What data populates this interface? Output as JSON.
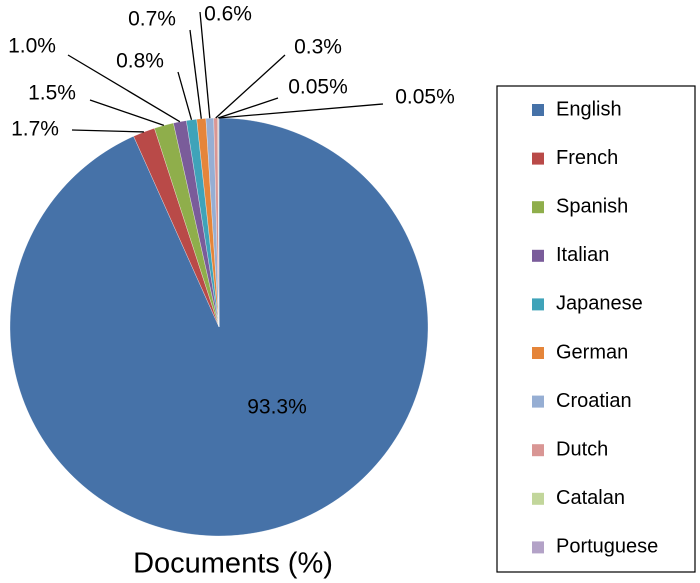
{
  "chart_data": {
    "type": "pie",
    "title": "Documents (%)",
    "categories": [
      "English",
      "French",
      "Spanish",
      "Italian",
      "Japanese",
      "German",
      "Croatian",
      "Dutch",
      "Catalan",
      "Portuguese"
    ],
    "values": [
      93.3,
      1.7,
      1.5,
      1.0,
      0.8,
      0.7,
      0.6,
      0.3,
      0.05,
      0.05
    ],
    "value_labels": [
      "93.3%",
      "1.7%",
      "1.5%",
      "1.0%",
      "0.8%",
      "0.7%",
      "0.6%",
      "0.3%",
      "0.05%",
      "0.05%"
    ],
    "colors": [
      "#4672a8",
      "#b94a48",
      "#8fae4b",
      "#7a5c9a",
      "#3fa3b9",
      "#e5853a",
      "#96aed3",
      "#d99694",
      "#c2d69b",
      "#b3a2c7"
    ],
    "legend": "right"
  }
}
